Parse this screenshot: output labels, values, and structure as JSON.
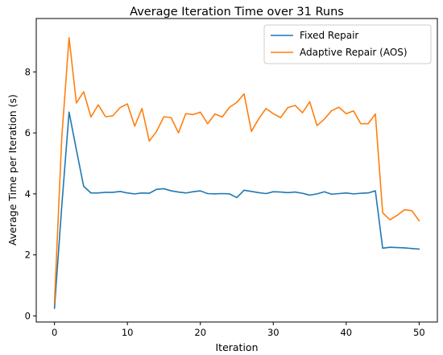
{
  "chart_data": {
    "type": "line",
    "title": "Average Iteration Time over 31 Runs",
    "xlabel": "Iteration",
    "ylabel": "Average Time per Iteration (s)",
    "xlim": [
      -2.5,
      52.5
    ],
    "ylim": [
      -0.2,
      9.75
    ],
    "xticks": [
      0,
      10,
      20,
      30,
      40,
      50
    ],
    "yticks": [
      0,
      2,
      4,
      6,
      8
    ],
    "grid": false,
    "legend_position": "top-right",
    "x": [
      0,
      1,
      2,
      3,
      4,
      5,
      6,
      7,
      8,
      9,
      10,
      11,
      12,
      13,
      14,
      15,
      16,
      17,
      18,
      19,
      20,
      21,
      22,
      23,
      24,
      25,
      26,
      27,
      28,
      29,
      30,
      31,
      32,
      33,
      34,
      35,
      36,
      37,
      38,
      39,
      40,
      41,
      42,
      43,
      44,
      45,
      46,
      47,
      48,
      49,
      50
    ],
    "series": [
      {
        "name": "Fixed Repair",
        "color": "#1f77b4",
        "values": [
          0.25,
          3.6,
          6.68,
          5.45,
          4.25,
          4.03,
          4.03,
          4.05,
          4.05,
          4.08,
          4.03,
          4.0,
          4.03,
          4.02,
          4.15,
          4.17,
          4.1,
          4.06,
          4.03,
          4.07,
          4.1,
          4.01,
          4.0,
          4.01,
          4.0,
          3.88,
          4.12,
          4.08,
          4.04,
          4.01,
          4.07,
          4.06,
          4.04,
          4.06,
          4.02,
          3.96,
          4.0,
          4.07,
          3.99,
          4.01,
          4.03,
          4.0,
          4.02,
          4.03,
          4.1,
          2.22,
          2.25,
          2.24,
          2.23,
          2.21,
          2.19
        ]
      },
      {
        "name": "Adaptive Repair (AOS)",
        "color": "#ff7f0e",
        "values": [
          0.45,
          5.85,
          9.12,
          6.98,
          7.35,
          6.52,
          6.92,
          6.53,
          6.56,
          6.83,
          6.95,
          6.22,
          6.8,
          5.73,
          6.05,
          6.53,
          6.5,
          6.0,
          6.63,
          6.6,
          6.68,
          6.3,
          6.62,
          6.52,
          6.84,
          7.0,
          7.28,
          6.05,
          6.46,
          6.8,
          6.63,
          6.5,
          6.83,
          6.9,
          6.66,
          7.02,
          6.24,
          6.45,
          6.73,
          6.84,
          6.63,
          6.72,
          6.3,
          6.3,
          6.62,
          3.38,
          3.15,
          3.3,
          3.48,
          3.45,
          3.12
        ]
      }
    ]
  }
}
